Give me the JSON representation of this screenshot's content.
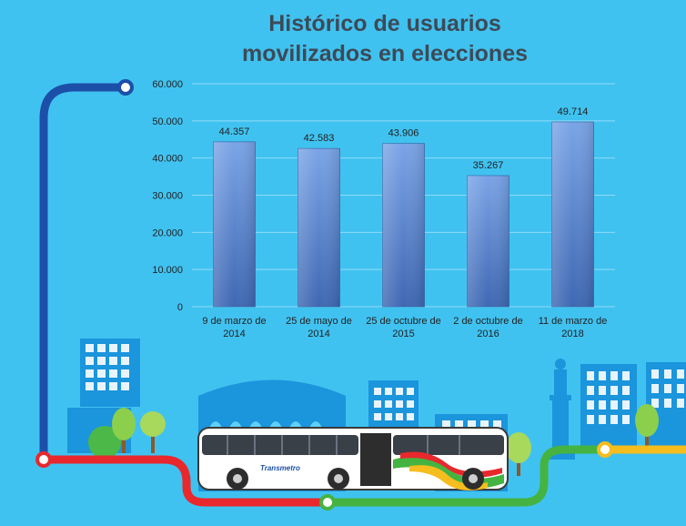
{
  "chart_data": {
    "type": "bar",
    "title_lines": [
      "Histórico de usuarios",
      "movilizados en elecciones"
    ],
    "categories": [
      [
        "9 de marzo de",
        "2014"
      ],
      [
        "25 de mayo de",
        "2014"
      ],
      [
        "25 de octubre de",
        "2015"
      ],
      [
        "2 de octubre de",
        "2016"
      ],
      [
        "11 de marzo de",
        "2018"
      ]
    ],
    "values": [
      44357,
      42583,
      43906,
      35267,
      49714
    ],
    "value_labels": [
      "44.357",
      "42.583",
      "43.906",
      "35.267",
      "49.714"
    ],
    "ylim": [
      0,
      60000
    ],
    "yticks": [
      0,
      10000,
      20000,
      30000,
      40000,
      50000,
      60000
    ],
    "ytick_labels": [
      "0",
      "10.000",
      "20.000",
      "30.000",
      "40.000",
      "50.000",
      "60.000"
    ],
    "grid": true,
    "bar_color": "#4a76c2",
    "bar_top_color": "#7aa4e6"
  },
  "illustration": {
    "bus_brand": "Transmetro",
    "route_colors": {
      "blue": "#1c4fa8",
      "red": "#e8282c",
      "green": "#45b341",
      "yellow": "#f6bd1e"
    },
    "building_color": "#1b95dc"
  }
}
